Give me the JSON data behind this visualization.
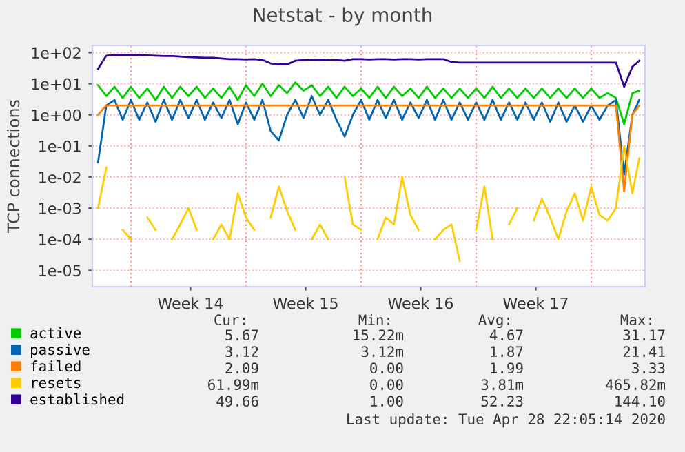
{
  "chart_data": {
    "type": "line",
    "title": "Netstat - by month",
    "ylabel": "TCP connections",
    "x": [
      "2020-03-27T00:00",
      "2020-03-27T12:00",
      "2020-03-28T00:00",
      "2020-03-28T12:00",
      "2020-03-29T00:00",
      "2020-03-29T12:00",
      "2020-03-30T00:00",
      "2020-03-30T12:00",
      "2020-03-31T00:00",
      "2020-03-31T12:00",
      "2020-04-01T00:00",
      "2020-04-01T12:00",
      "2020-04-02T00:00",
      "2020-04-02T12:00",
      "2020-04-03T00:00",
      "2020-04-03T12:00",
      "2020-04-04T00:00",
      "2020-04-04T12:00",
      "2020-04-05T00:00",
      "2020-04-05T12:00",
      "2020-04-06T00:00",
      "2020-04-06T12:00",
      "2020-04-07T00:00",
      "2020-04-07T12:00",
      "2020-04-08T00:00",
      "2020-04-08T12:00",
      "2020-04-09T00:00",
      "2020-04-09T12:00",
      "2020-04-10T00:00",
      "2020-04-10T12:00",
      "2020-04-11T00:00",
      "2020-04-11T12:00",
      "2020-04-12T00:00",
      "2020-04-12T12:00",
      "2020-04-13T00:00",
      "2020-04-13T12:00",
      "2020-04-14T00:00",
      "2020-04-14T12:00",
      "2020-04-15T00:00",
      "2020-04-15T12:00",
      "2020-04-16T00:00",
      "2020-04-16T12:00",
      "2020-04-17T00:00",
      "2020-04-17T12:00",
      "2020-04-18T00:00",
      "2020-04-18T12:00",
      "2020-04-19T00:00",
      "2020-04-19T12:00",
      "2020-04-20T00:00",
      "2020-04-20T12:00",
      "2020-04-21T00:00",
      "2020-04-21T12:00",
      "2020-04-22T00:00",
      "2020-04-22T12:00",
      "2020-04-23T00:00",
      "2020-04-23T12:00",
      "2020-04-24T00:00",
      "2020-04-24T12:00",
      "2020-04-25T00:00",
      "2020-04-25T12:00",
      "2020-04-26T00:00",
      "2020-04-26T12:00",
      "2020-04-27T00:00",
      "2020-04-27T12:00",
      "2020-04-28T00:00",
      "2020-04-28T12:00",
      "2020-04-28T22:00"
    ],
    "series": [
      {
        "name": "active",
        "color": "#00cc00",
        "values": [
          9,
          4,
          8,
          3.5,
          8,
          3.5,
          7,
          3,
          8,
          3.5,
          8,
          4,
          8,
          3.5,
          7,
          3.5,
          8,
          3,
          9,
          4,
          10,
          4,
          9,
          5,
          11,
          6,
          9,
          4,
          8,
          3.5,
          8,
          4,
          7,
          3.5,
          8,
          3.5,
          8,
          4,
          7,
          3.5,
          8,
          3.5,
          7,
          3.5,
          7,
          3.5,
          7,
          3.5,
          8,
          3.5,
          7,
          3.5,
          7,
          3.5,
          7,
          3.5,
          7,
          3.5,
          7,
          3.5,
          7,
          3.5,
          5,
          3.5,
          0.5,
          5,
          6
        ]
      },
      {
        "name": "passive",
        "color": "#0066b3",
        "values": [
          0.03,
          2,
          3,
          0.7,
          3,
          0.7,
          2.5,
          0.6,
          3,
          0.7,
          3,
          0.8,
          3,
          0.7,
          2.5,
          0.8,
          3,
          0.5,
          2.5,
          0.7,
          3,
          0.3,
          0.15,
          1,
          3,
          0.8,
          4,
          1,
          3,
          0.7,
          0.2,
          1,
          3,
          0.7,
          3,
          0.8,
          3,
          0.7,
          2.5,
          0.8,
          3,
          0.7,
          3,
          0.7,
          2.5,
          0.7,
          2.5,
          0.7,
          3,
          0.7,
          2.5,
          0.7,
          2.5,
          0.7,
          2.5,
          0.6,
          2.5,
          0.6,
          2,
          0.6,
          2,
          0.7,
          2,
          3,
          0.012,
          1,
          3
        ]
      },
      {
        "name": "failed",
        "color": "#ff8000",
        "values": [
          1,
          2,
          2,
          2,
          2,
          2,
          2,
          2,
          2,
          2,
          2,
          2,
          2,
          2,
          2,
          2,
          2,
          2,
          2,
          2,
          2,
          2,
          2,
          2,
          2,
          2,
          2,
          2,
          2,
          2,
          2,
          2,
          2,
          2,
          2,
          2,
          2,
          2,
          2,
          2,
          2,
          2,
          2,
          2,
          2,
          2,
          2,
          2,
          2,
          2,
          2,
          2,
          2,
          2,
          2,
          2,
          2,
          2,
          2,
          2,
          2,
          2,
          2,
          2,
          0.0035,
          1,
          2
        ]
      },
      {
        "name": "resets",
        "color": "#ffcc00",
        "values": [
          0.001,
          0.02,
          null,
          0.0002,
          0.0001,
          null,
          0.0005,
          0.0002,
          null,
          0.0001,
          0.0003,
          0.001,
          0.0002,
          null,
          0.0001,
          0.0003,
          0.0001,
          0.003,
          0.0005,
          0.0002,
          null,
          0.0005,
          0.005,
          0.0008,
          0.0002,
          null,
          0.0001,
          0.0003,
          0.0001,
          null,
          0.01,
          0.0003,
          0.0002,
          null,
          0.0001,
          0.0005,
          0.0003,
          0.01,
          0.0006,
          0.0002,
          null,
          0.0001,
          0.0002,
          0.0003,
          2e-05,
          null,
          0.0002,
          0.005,
          0.0001,
          null,
          0.0003,
          0.001,
          null,
          0.0004,
          0.002,
          0.0005,
          0.0001,
          0.0008,
          0.003,
          0.0004,
          0.005,
          0.0006,
          0.0004,
          0.001,
          0.1,
          0.003,
          0.04
        ]
      },
      {
        "name": "established",
        "color": "#330099",
        "values": [
          30,
          80,
          85,
          85,
          85,
          85,
          82,
          80,
          78,
          78,
          75,
          72,
          70,
          68,
          68,
          65,
          62,
          62,
          60,
          62,
          58,
          45,
          42,
          42,
          55,
          58,
          60,
          58,
          60,
          58,
          55,
          62,
          62,
          60,
          62,
          62,
          60,
          62,
          62,
          60,
          62,
          62,
          62,
          50,
          48,
          48,
          48,
          48,
          48,
          48,
          48,
          48,
          48,
          48,
          48,
          48,
          48,
          48,
          48,
          48,
          48,
          48,
          48,
          48,
          8,
          35,
          55
        ]
      }
    ],
    "log": "y",
    "xlim": [
      "2020-03-26T15:40",
      "2020-04-29T06:30"
    ],
    "xticks": [
      {
        "value": "2020-04-01T15:00",
        "label": "Week 14"
      },
      {
        "value": "2020-04-08T15:00",
        "label": "Week 15"
      },
      {
        "value": "2020-04-15T15:00",
        "label": "Week 16"
      },
      {
        "value": "2020-04-22T15:00",
        "label": "Week 17"
      }
    ],
    "ylim": [
      3e-06,
      170
    ],
    "yticks": [
      {
        "value": 1e-05,
        "label": "1e-05"
      },
      {
        "value": 0.0001,
        "label": "1e-04"
      },
      {
        "value": 0.001,
        "label": "1e-03"
      },
      {
        "value": 0.01,
        "label": "1e-02"
      },
      {
        "value": 0.1,
        "label": "1e-01"
      },
      {
        "value": 1,
        "label": "1e+00"
      },
      {
        "value": 10,
        "label": "1e+01"
      },
      {
        "value": 100,
        "label": "1e+02"
      }
    ],
    "ref_lines": [
      {
        "axis": "x",
        "value": "2020-03-29T00:00",
        "color": "#ff9999",
        "line_style": "dotted"
      },
      {
        "axis": "x",
        "value": "2020-04-05T00:00",
        "color": "#ff9999",
        "line_style": "dotted"
      },
      {
        "axis": "x",
        "value": "2020-04-12T00:00",
        "color": "#ff9999",
        "line_style": "dotted"
      },
      {
        "axis": "x",
        "value": "2020-04-19T00:00",
        "color": "#ff9999",
        "line_style": "dotted"
      },
      {
        "axis": "x",
        "value": "2020-04-26T00:00",
        "color": "#ff9999",
        "line_style": "dotted"
      }
    ],
    "grid": "y",
    "legend": "bottom left",
    "marker": "none",
    "line_style": "solid",
    "annotations": [
      "Cur:",
      "Min:",
      "Avg:",
      "Max:",
      "5.67",
      "15.22m",
      "4.67",
      "31.17",
      "3.12",
      "3.12m",
      "1.87",
      "21.41",
      "2.09",
      "0.00",
      "1.99",
      "3.33",
      "61.99m",
      "0.00",
      "3.81m",
      "465.82m",
      "49.66",
      "1.00",
      "52.23",
      "144.10",
      "Last update: Tue Apr 28 22:05:14 2020"
    ]
  }
}
